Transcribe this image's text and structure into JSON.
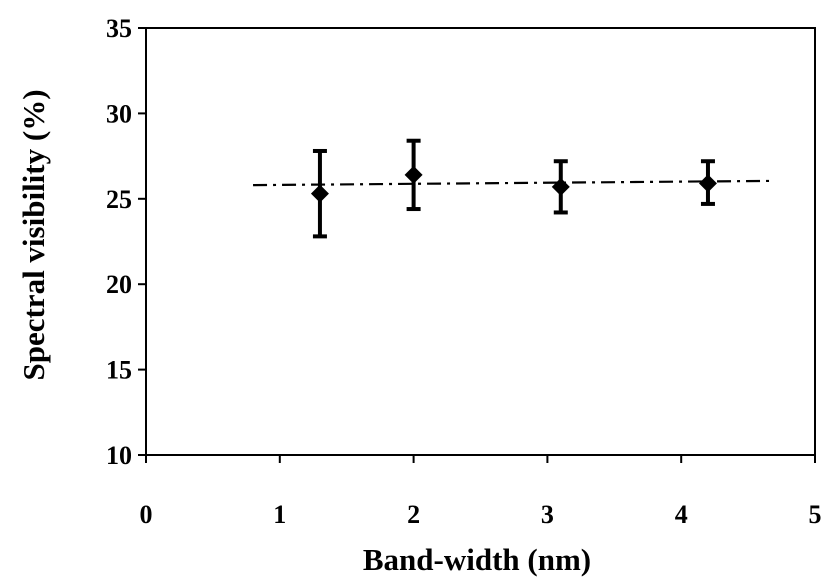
{
  "chart_data": {
    "type": "scatter",
    "xlabel": "Band-width (nm)",
    "ylabel": "Spectral visibility (%)",
    "xlim": [
      0,
      5
    ],
    "ylim": [
      10,
      35
    ],
    "xticks": [
      0,
      1,
      2,
      3,
      4,
      5
    ],
    "yticks": [
      10,
      15,
      20,
      25,
      30,
      35
    ],
    "grid": false,
    "legend": "none",
    "series": [
      {
        "marker": "diamond",
        "color": "#000000",
        "points": [
          {
            "x": 1.3,
            "y": 25.3,
            "err_low": 22.8,
            "err_high": 27.8
          },
          {
            "x": 2.0,
            "y": 26.4,
            "err_low": 24.4,
            "err_high": 28.4
          },
          {
            "x": 3.1,
            "y": 25.7,
            "err_low": 24.2,
            "err_high": 27.2
          },
          {
            "x": 4.2,
            "y": 25.9,
            "err_low": 24.7,
            "err_high": 27.2
          }
        ]
      }
    ],
    "trend_line": {
      "style": "dash-dot",
      "x": [
        0.8,
        4.7
      ],
      "y": [
        25.8,
        26.05
      ]
    }
  }
}
